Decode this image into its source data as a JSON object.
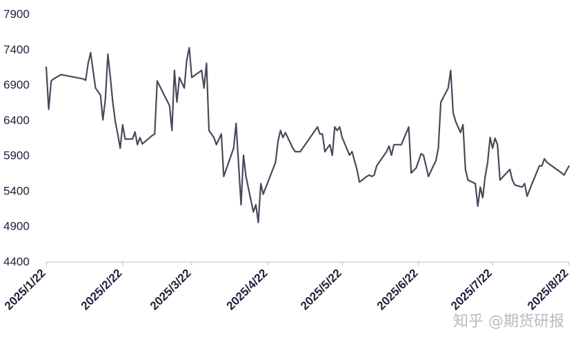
{
  "chart_data": {
    "type": "line",
    "title": "",
    "xlabel": "",
    "ylabel": "",
    "ylim": [
      4400,
      7900
    ],
    "yticks": [
      4400,
      4900,
      5400,
      5900,
      6400,
      6900,
      7400,
      7900
    ],
    "xlim": [
      "2025-01-22",
      "2025-08-22"
    ],
    "xticks": [
      {
        "date": "2025-01-22",
        "label": "2025/1/22"
      },
      {
        "date": "2025-02-22",
        "label": "2025/2/22"
      },
      {
        "date": "2025-03-22",
        "label": "2025/3/22"
      },
      {
        "date": "2025-04-22",
        "label": "2025/4/22"
      },
      {
        "date": "2025-05-22",
        "label": "2025/5/22"
      },
      {
        "date": "2025-06-22",
        "label": "2025/6/22"
      },
      {
        "date": "2025-07-22",
        "label": "2025/7/22"
      },
      {
        "date": "2025-08-22",
        "label": "2025/8/22"
      }
    ],
    "line_color": "#4a4759",
    "grid": false,
    "series": [
      {
        "points": [
          [
            "2025-01-22",
            7150
          ],
          [
            "2025-01-23",
            6550
          ],
          [
            "2025-01-24",
            6950
          ],
          [
            "2025-01-25",
            6980
          ],
          [
            "2025-01-28",
            7040
          ],
          [
            "2025-02-06",
            6980
          ],
          [
            "2025-02-07",
            6960
          ],
          [
            "2025-02-08",
            7200
          ],
          [
            "2025-02-09",
            7350
          ],
          [
            "2025-02-10",
            7100
          ],
          [
            "2025-02-11",
            6850
          ],
          [
            "2025-02-12",
            6800
          ],
          [
            "2025-02-13",
            6750
          ],
          [
            "2025-02-14",
            6400
          ],
          [
            "2025-02-15",
            6700
          ],
          [
            "2025-02-16",
            7330
          ],
          [
            "2025-02-17",
            7000
          ],
          [
            "2025-02-18",
            6650
          ],
          [
            "2025-02-19",
            6380
          ],
          [
            "2025-02-20",
            6200
          ],
          [
            "2025-02-21",
            6000
          ],
          [
            "2025-02-22",
            6330
          ],
          [
            "2025-02-23",
            6130
          ],
          [
            "2025-02-24",
            6130
          ],
          [
            "2025-02-26",
            6130
          ],
          [
            "2025-02-27",
            6230
          ],
          [
            "2025-02-28",
            6050
          ],
          [
            "2025-03-01",
            6150
          ],
          [
            "2025-03-02",
            6060
          ],
          [
            "2025-03-06",
            6180
          ],
          [
            "2025-03-07",
            6200
          ],
          [
            "2025-03-08",
            6950
          ],
          [
            "2025-03-13",
            6600
          ],
          [
            "2025-03-14",
            6250
          ],
          [
            "2025-03-15",
            7100
          ],
          [
            "2025-03-16",
            6650
          ],
          [
            "2025-03-17",
            7000
          ],
          [
            "2025-03-19",
            6850
          ],
          [
            "2025-03-20",
            7250
          ],
          [
            "2025-03-21",
            7420
          ],
          [
            "2025-03-22",
            7000
          ],
          [
            "2025-03-26",
            7100
          ],
          [
            "2025-03-27",
            6850
          ],
          [
            "2025-03-28",
            7200
          ],
          [
            "2025-03-29",
            6250
          ],
          [
            "2025-03-31",
            6150
          ],
          [
            "2025-04-01",
            6050
          ],
          [
            "2025-04-03",
            6200
          ],
          [
            "2025-04-04",
            5600
          ],
          [
            "2025-04-08",
            6000
          ],
          [
            "2025-04-09",
            6350
          ],
          [
            "2025-04-11",
            5200
          ],
          [
            "2025-04-12",
            5900
          ],
          [
            "2025-04-13",
            5600
          ],
          [
            "2025-04-16",
            5100
          ],
          [
            "2025-04-17",
            5200
          ],
          [
            "2025-04-18",
            4950
          ],
          [
            "2025-04-19",
            5500
          ],
          [
            "2025-04-20",
            5350
          ],
          [
            "2025-04-25",
            5800
          ],
          [
            "2025-04-26",
            6100
          ],
          [
            "2025-04-27",
            6250
          ],
          [
            "2025-04-28",
            6150
          ],
          [
            "2025-04-29",
            6220
          ],
          [
            "2025-05-02",
            6000
          ],
          [
            "2025-05-03",
            5950
          ],
          [
            "2025-05-05",
            5950
          ],
          [
            "2025-05-12",
            6300
          ],
          [
            "2025-05-13",
            6200
          ],
          [
            "2025-05-14",
            6200
          ],
          [
            "2025-05-15",
            5950
          ],
          [
            "2025-05-17",
            6050
          ],
          [
            "2025-05-18",
            5900
          ],
          [
            "2025-05-19",
            6300
          ],
          [
            "2025-05-20",
            6250
          ],
          [
            "2025-05-21",
            6300
          ],
          [
            "2025-05-22",
            6150
          ],
          [
            "2025-05-25",
            5900
          ],
          [
            "2025-05-26",
            5950
          ],
          [
            "2025-05-28",
            5700
          ],
          [
            "2025-05-29",
            5520
          ],
          [
            "2025-06-01",
            5600
          ],
          [
            "2025-06-02",
            5620
          ],
          [
            "2025-06-03",
            5600
          ],
          [
            "2025-06-04",
            5620
          ],
          [
            "2025-06-05",
            5750
          ],
          [
            "2025-06-07",
            5850
          ],
          [
            "2025-06-09",
            5950
          ],
          [
            "2025-06-10",
            6030
          ],
          [
            "2025-06-11",
            5900
          ],
          [
            "2025-06-12",
            6050
          ],
          [
            "2025-06-15",
            6050
          ],
          [
            "2025-06-18",
            6300
          ],
          [
            "2025-06-19",
            5650
          ],
          [
            "2025-06-21",
            5720
          ],
          [
            "2025-06-23",
            5920
          ],
          [
            "2025-06-24",
            5900
          ],
          [
            "2025-06-26",
            5600
          ],
          [
            "2025-06-28",
            5750
          ],
          [
            "2025-06-29",
            5820
          ],
          [
            "2025-06-30",
            6000
          ],
          [
            "2025-07-01",
            6650
          ],
          [
            "2025-07-04",
            6850
          ],
          [
            "2025-07-05",
            7100
          ],
          [
            "2025-07-06",
            6500
          ],
          [
            "2025-07-07",
            6380
          ],
          [
            "2025-07-08",
            6300
          ],
          [
            "2025-07-09",
            6220
          ],
          [
            "2025-07-10",
            6330
          ],
          [
            "2025-07-11",
            5700
          ],
          [
            "2025-07-12",
            5550
          ],
          [
            "2025-07-15",
            5500
          ],
          [
            "2025-07-16",
            5180
          ],
          [
            "2025-07-17",
            5450
          ],
          [
            "2025-07-18",
            5300
          ],
          [
            "2025-07-19",
            5600
          ],
          [
            "2025-07-20",
            5800
          ],
          [
            "2025-07-21",
            6150
          ],
          [
            "2025-07-22",
            6000
          ],
          [
            "2025-07-23",
            6140
          ],
          [
            "2025-07-24",
            6050
          ],
          [
            "2025-07-25",
            5550
          ],
          [
            "2025-07-29",
            5700
          ],
          [
            "2025-07-30",
            5550
          ],
          [
            "2025-07-31",
            5480
          ],
          [
            "2025-08-02",
            5460
          ],
          [
            "2025-08-03",
            5450
          ],
          [
            "2025-08-04",
            5500
          ],
          [
            "2025-08-05",
            5320
          ],
          [
            "2025-08-07",
            5500
          ],
          [
            "2025-08-10",
            5750
          ],
          [
            "2025-08-11",
            5750
          ],
          [
            "2025-08-12",
            5850
          ],
          [
            "2025-08-13",
            5800
          ],
          [
            "2025-08-17",
            5700
          ],
          [
            "2025-08-19",
            5650
          ],
          [
            "2025-08-20",
            5620
          ],
          [
            "2025-08-22",
            5750
          ]
        ]
      }
    ]
  },
  "watermark": "知乎 @期货研报"
}
